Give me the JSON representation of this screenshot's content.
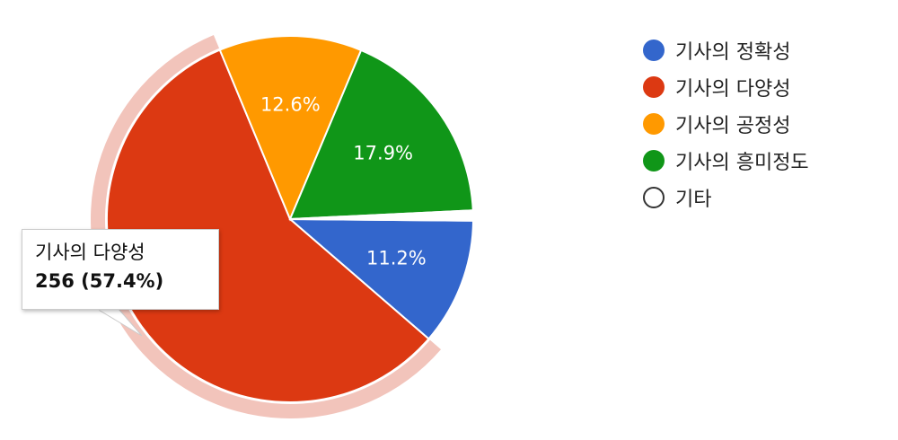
{
  "chart_data": {
    "type": "pie",
    "categories": [
      "기사의 정확성",
      "기사의 다양성",
      "기사의 공정성",
      "기사의 흥미정도",
      "기타"
    ],
    "values": [
      11.2,
      57.4,
      12.6,
      17.9,
      0.9
    ],
    "slice_labels": [
      "11.2%",
      "",
      "12.6%",
      "17.9%",
      ""
    ],
    "colors": [
      "#3366cc",
      "#dc3912",
      "#ff9900",
      "#109618",
      "#ffffff"
    ],
    "highlighted": "기사의 다양성",
    "legend_position": "right",
    "legend_entries": [
      "기사의 정확성",
      "기사의 다양성",
      "기사의 공정성",
      "기사의 흥미정도",
      "기타"
    ]
  },
  "tooltip": {
    "label": "기사의 다양성",
    "value": "256 (57.4%)"
  }
}
